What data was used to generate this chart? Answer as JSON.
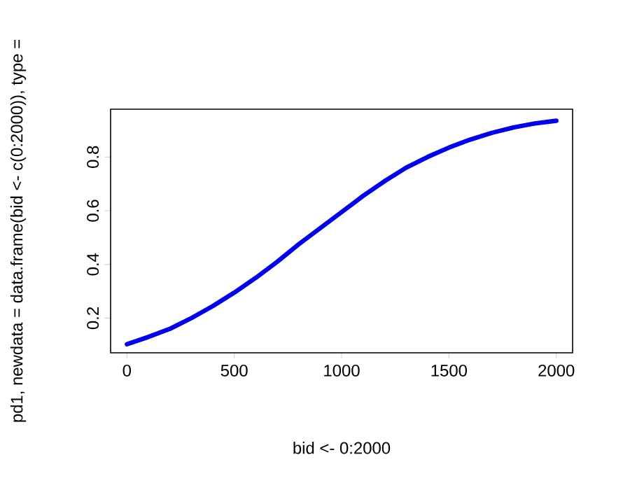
{
  "chart_data": {
    "type": "line",
    "xlabel": "bid <- 0:2000",
    "ylabel": "pd1, newdata = data.frame(bid <- c(0:2000)), type =",
    "x": [
      0,
      100,
      200,
      300,
      400,
      500,
      600,
      700,
      800,
      900,
      1000,
      1100,
      1200,
      1300,
      1400,
      1500,
      1600,
      1700,
      1800,
      1900,
      2000
    ],
    "series": [
      {
        "color": "#0000ee",
        "values": [
          0.103,
          0.13,
          0.16,
          0.2,
          0.245,
          0.295,
          0.35,
          0.41,
          0.475,
          0.535,
          0.595,
          0.655,
          0.71,
          0.76,
          0.8,
          0.835,
          0.865,
          0.89,
          0.91,
          0.925,
          0.935
        ]
      }
    ],
    "xlim": [
      -76,
      2076
    ],
    "ylim": [
      0.071,
      0.978
    ],
    "xticks": [
      0,
      500,
      1000,
      1500,
      2000
    ],
    "yticks": [
      0.2,
      0.4,
      0.6,
      0.8
    ],
    "marker": "none",
    "line_style": "solid"
  }
}
